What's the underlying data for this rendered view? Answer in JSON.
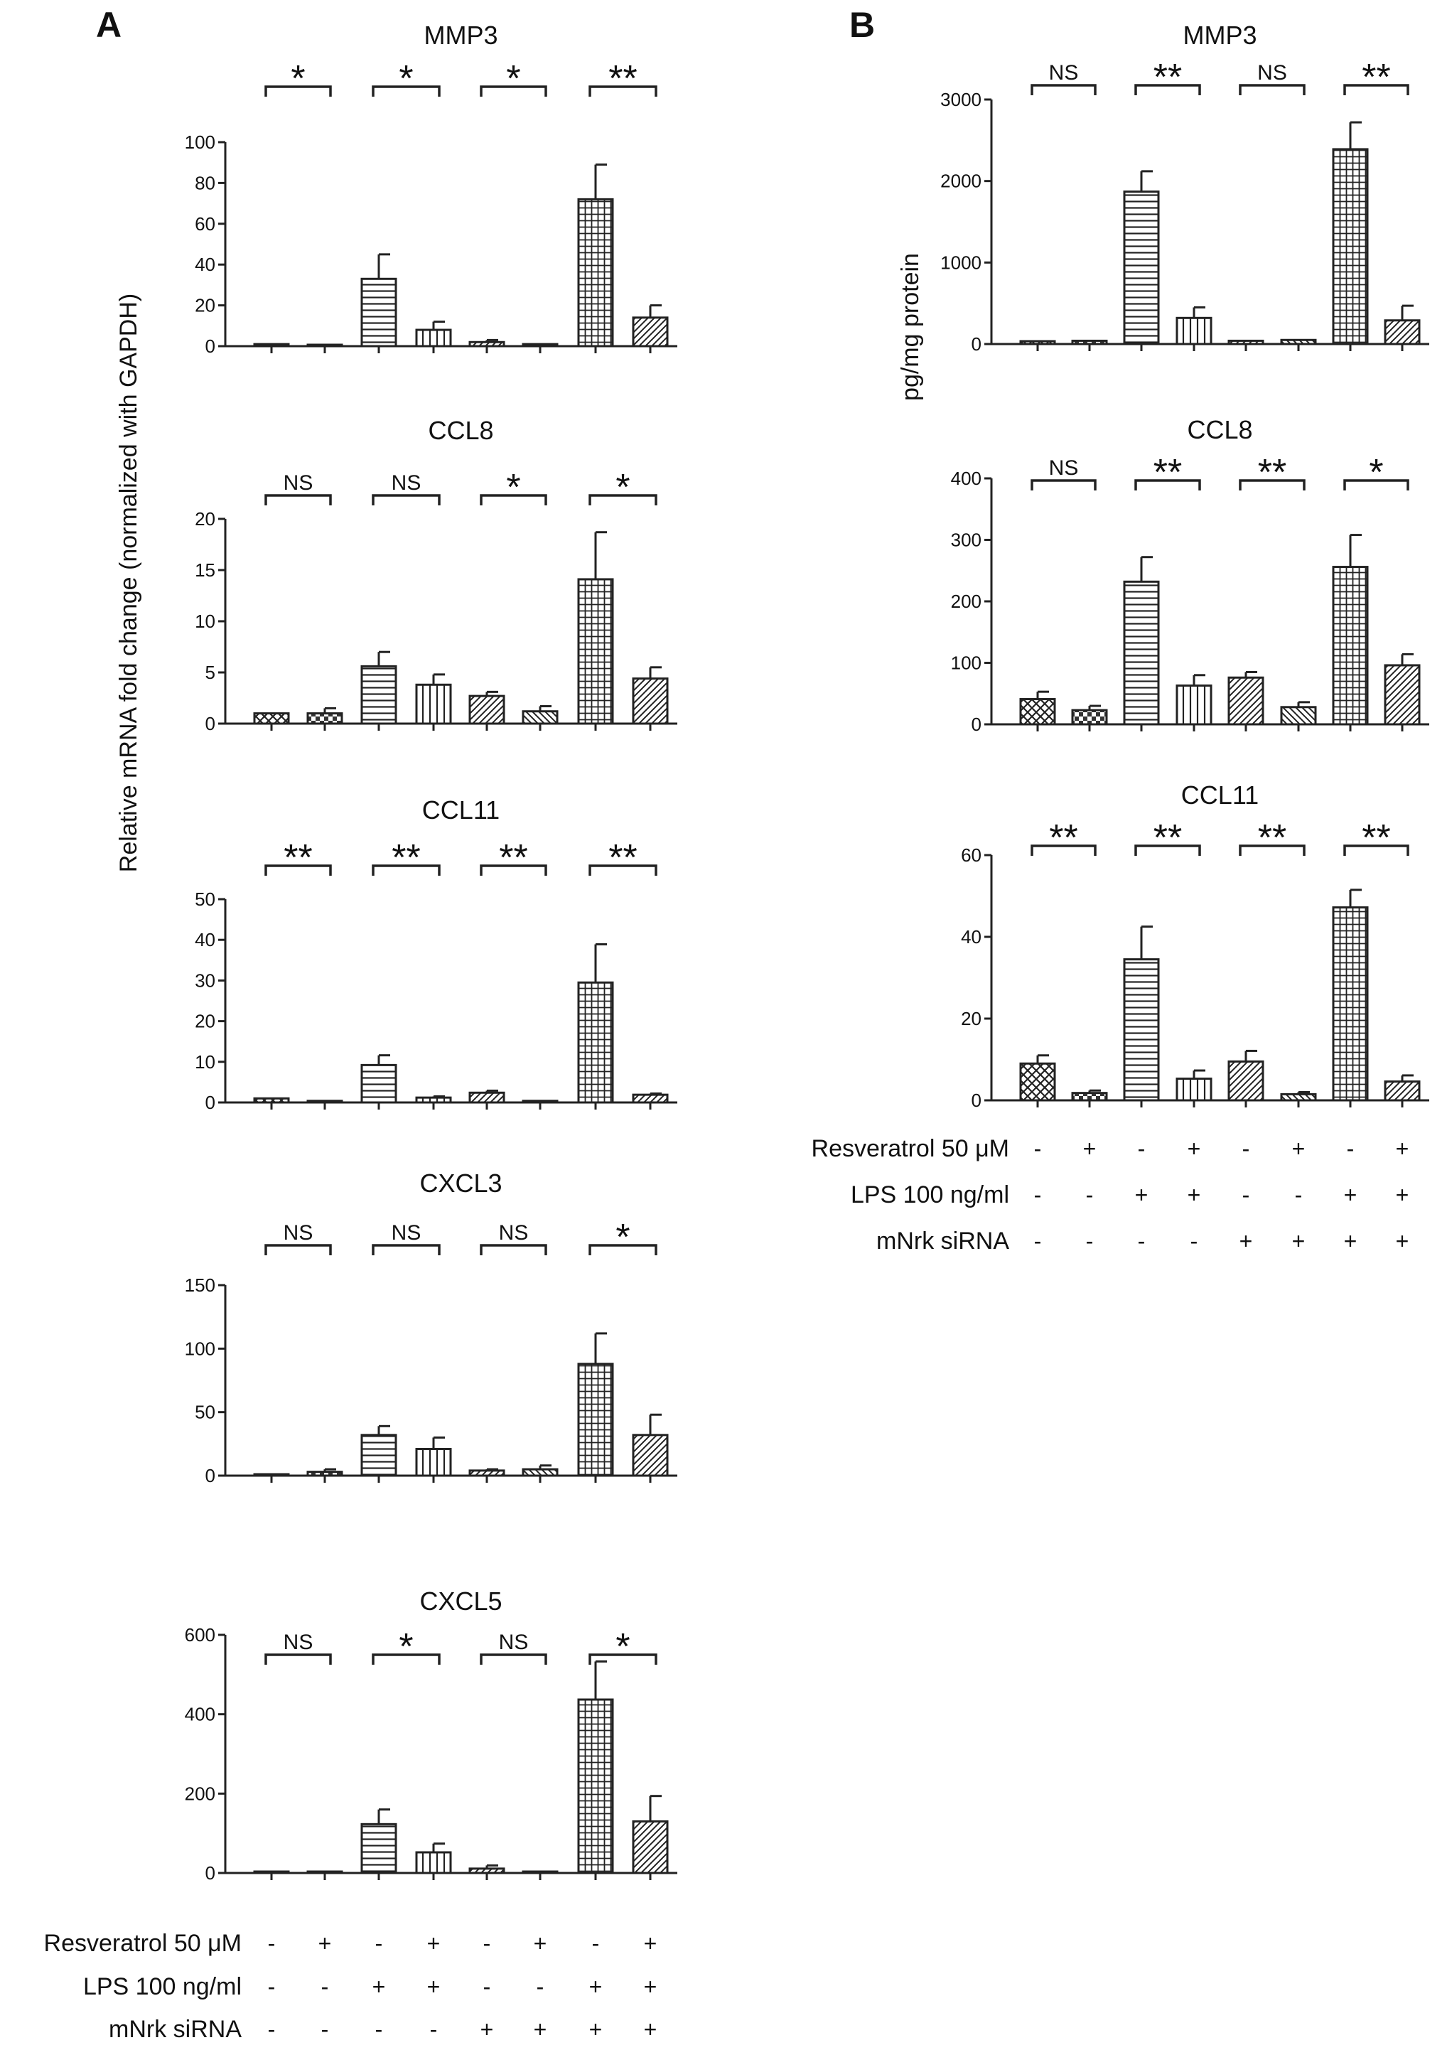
{
  "panels": [
    {
      "letter": "A",
      "ylabel": "Relative mRNA fold change (normalized with GAPDH)"
    },
    {
      "letter": "B",
      "ylabel": "pg/mg protein"
    }
  ],
  "conditions": [
    {
      "label": "Resveratrol 50 μM",
      "values": [
        "-",
        "+",
        "-",
        "+",
        "-",
        "+",
        "-",
        "+"
      ]
    },
    {
      "label": "LPS 100 ng/ml",
      "values": [
        "-",
        "-",
        "+",
        "+",
        "-",
        "-",
        "+",
        "+"
      ]
    },
    {
      "label": "mNrk siRNA",
      "values": [
        "-",
        "-",
        "-",
        "-",
        "+",
        "+",
        "+",
        "+"
      ]
    }
  ],
  "chart_data": [
    {
      "type": "bar",
      "panel": "A",
      "title": "MMP3",
      "ylim": [
        0,
        100
      ],
      "yticks": [
        0,
        20,
        40,
        60,
        80,
        100
      ],
      "values": [
        1,
        0.5,
        33,
        8,
        2,
        1,
        72,
        14
      ],
      "errors": [
        0,
        0,
        12,
        4,
        1,
        0,
        17,
        6
      ],
      "significance": [
        "*",
        "*",
        "*",
        "**"
      ]
    },
    {
      "type": "bar",
      "panel": "A",
      "title": "CCL8",
      "ylim": [
        0,
        20
      ],
      "yticks": [
        0,
        5,
        10,
        15,
        20
      ],
      "values": [
        1,
        1,
        5.6,
        3.8,
        2.7,
        1.2,
        14.1,
        4.4
      ],
      "errors": [
        0,
        0.5,
        1.4,
        1,
        0.4,
        0.5,
        4.6,
        1.1
      ],
      "significance": [
        "NS",
        "NS",
        "*",
        "*"
      ]
    },
    {
      "type": "bar",
      "panel": "A",
      "title": "CCL11",
      "ylim": [
        0,
        50
      ],
      "yticks": [
        0,
        10,
        20,
        30,
        40,
        50
      ],
      "values": [
        1,
        0.4,
        9.2,
        1.2,
        2.4,
        0.4,
        29.5,
        1.9
      ],
      "errors": [
        0,
        0,
        2.4,
        0.3,
        0.5,
        0,
        9.4,
        0.3
      ],
      "significance": [
        "**",
        "**",
        "**",
        "**"
      ]
    },
    {
      "type": "bar",
      "panel": "A",
      "title": "CXCL3",
      "ylim": [
        0,
        150
      ],
      "yticks": [
        0,
        50,
        100,
        150
      ],
      "values": [
        1,
        3,
        32,
        21,
        4,
        5,
        88,
        32
      ],
      "errors": [
        0,
        2,
        7,
        9,
        1,
        3,
        24,
        16
      ],
      "significance": [
        "NS",
        "NS",
        "NS",
        "*"
      ]
    },
    {
      "type": "bar",
      "panel": "A",
      "title": "CXCL5",
      "ylim": [
        0,
        600
      ],
      "yticks": [
        0,
        200,
        400,
        600
      ],
      "values": [
        2,
        1,
        123,
        52,
        11,
        3,
        437,
        130
      ],
      "errors": [
        0,
        0,
        37,
        22,
        8,
        0,
        96,
        64
      ],
      "significance": [
        "NS",
        "*",
        "NS",
        "*"
      ]
    },
    {
      "type": "bar",
      "panel": "B",
      "title": "MMP3",
      "ylim": [
        0,
        3000
      ],
      "yticks": [
        0,
        1000,
        2000,
        3000
      ],
      "values": [
        35,
        40,
        1870,
        320,
        40,
        50,
        2390,
        290
      ],
      "errors": [
        0,
        0,
        250,
        130,
        0,
        0,
        330,
        180
      ],
      "significance": [
        "NS",
        "**",
        "NS",
        "**"
      ]
    },
    {
      "type": "bar",
      "panel": "B",
      "title": "CCL8",
      "ylim": [
        0,
        400
      ],
      "yticks": [
        0,
        100,
        200,
        300,
        400
      ],
      "values": [
        41,
        23,
        232,
        63,
        76,
        28,
        256,
        96
      ],
      "errors": [
        12,
        7,
        40,
        17,
        9,
        8,
        52,
        18
      ],
      "significance": [
        "NS",
        "**",
        "**",
        "*"
      ]
    },
    {
      "type": "bar",
      "panel": "B",
      "title": "CCL11",
      "ylim": [
        0,
        60
      ],
      "yticks": [
        0,
        20,
        40,
        60
      ],
      "values": [
        9,
        1.8,
        34.5,
        5.3,
        9.5,
        1.5,
        47.2,
        4.6
      ],
      "errors": [
        2,
        0.6,
        8,
        2,
        2.6,
        0.5,
        4.3,
        1.5
      ],
      "significance": [
        "**",
        "**",
        "**",
        "**"
      ]
    }
  ]
}
